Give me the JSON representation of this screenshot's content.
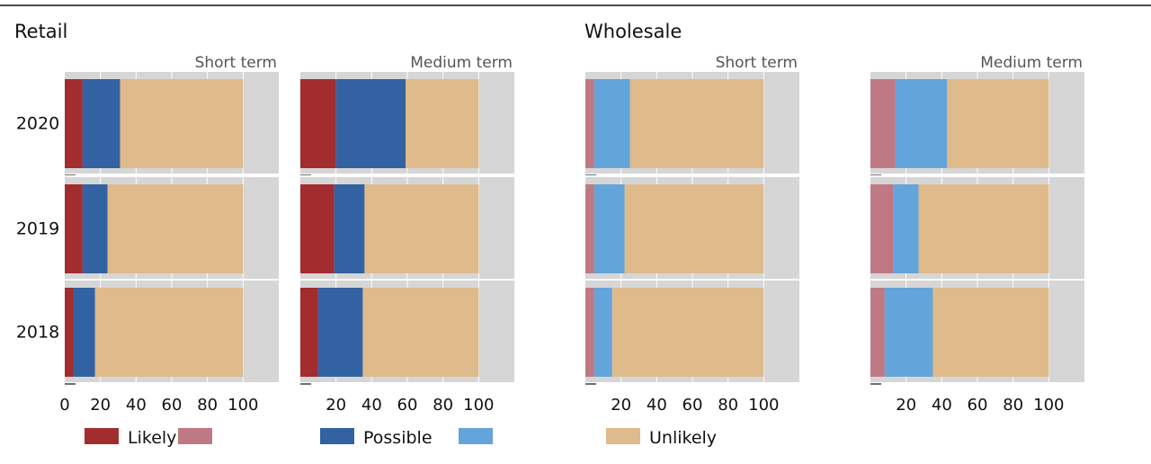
{
  "colors": {
    "retail_likely": "#a22c2e",
    "retail_possible": "#3262a1",
    "wholesale_likely": "#bf7985",
    "wholesale_possible": "#63a4db",
    "unlikely": "#dfba8b",
    "panel_bg": "#d6d6d6"
  },
  "chart_data": {
    "type": "bar",
    "orientation": "horizontal",
    "stacked": true,
    "categories": [
      "2020",
      "2019",
      "2018"
    ],
    "xticks": [
      "0",
      "20",
      "40",
      "60",
      "80",
      "100"
    ],
    "groups": [
      {
        "title": "Retail",
        "panels": [
          {
            "subtitle": "Short term",
            "xlim": [
              0,
              120
            ],
            "series": [
              {
                "color_key": "retail_likely",
                "values": [
                  10,
                  10,
                  5
                ]
              },
              {
                "color_key": "retail_possible",
                "values": [
                  21,
                  14,
                  12
                ]
              },
              {
                "color_key": "unlikely",
                "values": [
                  69,
                  76,
                  83
                ]
              }
            ]
          },
          {
            "subtitle": "Medium term",
            "xlim": [
              0,
              120
            ],
            "series": [
              {
                "color_key": "retail_likely",
                "values": [
                  20,
                  19,
                  10
                ]
              },
              {
                "color_key": "retail_possible",
                "values": [
                  39,
                  17,
                  25
                ]
              },
              {
                "color_key": "unlikely",
                "values": [
                  41,
                  64,
                  65
                ]
              }
            ]
          }
        ]
      },
      {
        "title": "Wholesale",
        "panels": [
          {
            "subtitle": "Short term",
            "xlim": [
              0,
              120
            ],
            "series": [
              {
                "color_key": "wholesale_likely",
                "values": [
                  5,
                  5,
                  5
                ]
              },
              {
                "color_key": "wholesale_possible",
                "values": [
                  20,
                  17,
                  10
                ]
              },
              {
                "color_key": "unlikely",
                "values": [
                  75,
                  78,
                  85
                ]
              }
            ]
          },
          {
            "subtitle": "Medium term",
            "xlim": [
              0,
              120
            ],
            "series": [
              {
                "color_key": "wholesale_likely",
                "values": [
                  14,
                  13,
                  8
                ]
              },
              {
                "color_key": "wholesale_possible",
                "values": [
                  29,
                  14,
                  27
                ]
              },
              {
                "color_key": "unlikely",
                "values": [
                  57,
                  73,
                  65
                ]
              }
            ]
          }
        ]
      }
    ],
    "legend": [
      {
        "label": "Likely",
        "color_key": "retail_likely"
      },
      {
        "label": "",
        "color_key": "wholesale_likely"
      },
      {
        "label": "Possible",
        "color_key": "retail_possible"
      },
      {
        "label": "",
        "color_key": "wholesale_possible"
      },
      {
        "label": "Unlikely",
        "color_key": "unlikely"
      }
    ],
    "legend_position": "bottom"
  }
}
